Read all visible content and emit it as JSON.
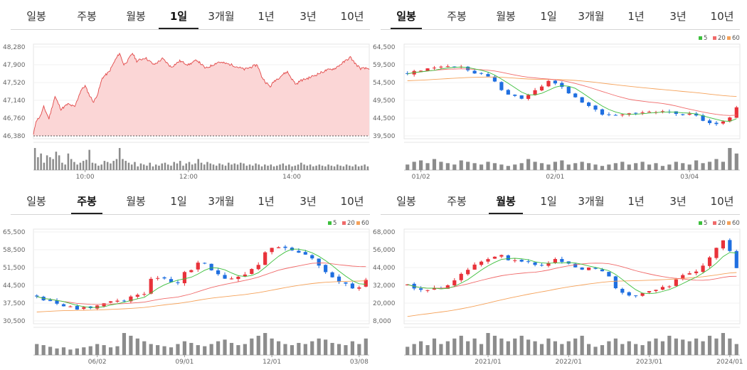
{
  "tab_labels": [
    "일봉",
    "주봉",
    "월봉",
    "1일",
    "3개월",
    "1년",
    "3년",
    "10년"
  ],
  "legend_labels": [
    "5",
    "20",
    "60"
  ],
  "colors": {
    "up": "#e8323a",
    "down": "#1f6fe0",
    "ma5": "#3cbf3c",
    "ma20": "#f06a6a",
    "ma60": "#f5a25a",
    "area_fill": "#fbd6d6",
    "area_line": "#e24848",
    "volume": "#8c8c8c"
  },
  "chart_data": [
    {
      "id": "intraday",
      "type": "area",
      "active_tab": 3,
      "title": "",
      "xlabel": "",
      "ylabel": "",
      "y_ticks": [
        "48,280",
        "47,900",
        "47,520",
        "47,140",
        "46,760",
        "46,380"
      ],
      "ylim": [
        46380,
        48280
      ],
      "x_ticks": [
        "10:00",
        "12:00",
        "14:00"
      ],
      "x_range": [
        0,
        390
      ],
      "x_tick_positions": [
        60,
        180,
        300
      ],
      "anchors": [
        [
          0,
          46400
        ],
        [
          3,
          46700
        ],
        [
          8,
          46800
        ],
        [
          12,
          47000
        ],
        [
          18,
          46750
        ],
        [
          25,
          47220
        ],
        [
          32,
          46950
        ],
        [
          40,
          47060
        ],
        [
          48,
          47000
        ],
        [
          55,
          47350
        ],
        [
          60,
          47450
        ],
        [
          65,
          47250
        ],
        [
          70,
          47100
        ],
        [
          75,
          47300
        ],
        [
          80,
          47620
        ],
        [
          88,
          47750
        ],
        [
          95,
          48000
        ],
        [
          100,
          48150
        ],
        [
          105,
          47900
        ],
        [
          110,
          48000
        ],
        [
          115,
          48150
        ],
        [
          120,
          47980
        ],
        [
          130,
          48050
        ],
        [
          140,
          47900
        ],
        [
          150,
          48030
        ],
        [
          160,
          47850
        ],
        [
          170,
          47980
        ],
        [
          180,
          47900
        ],
        [
          190,
          48000
        ],
        [
          200,
          47820
        ],
        [
          215,
          47960
        ],
        [
          230,
          47900
        ],
        [
          245,
          47800
        ],
        [
          260,
          47900
        ],
        [
          265,
          47650
        ],
        [
          270,
          47520
        ],
        [
          275,
          47430
        ],
        [
          280,
          47560
        ],
        [
          285,
          47620
        ],
        [
          290,
          47700
        ],
        [
          295,
          47750
        ],
        [
          300,
          47600
        ],
        [
          305,
          47480
        ],
        [
          310,
          47560
        ],
        [
          320,
          47620
        ],
        [
          330,
          47700
        ],
        [
          340,
          47780
        ],
        [
          350,
          47820
        ],
        [
          360,
          47950
        ],
        [
          368,
          48060
        ],
        [
          375,
          47900
        ],
        [
          380,
          47820
        ],
        [
          390,
          47820
        ]
      ],
      "noise": 25,
      "seed": 11,
      "volume": [
        60,
        35,
        45,
        20,
        40,
        35,
        30,
        50,
        40,
        20,
        15,
        45,
        30,
        22,
        15,
        20,
        25,
        28,
        55,
        20,
        18,
        12,
        15,
        25,
        22,
        18,
        25,
        30,
        60,
        30,
        25,
        20,
        15,
        22,
        10,
        18,
        15,
        12,
        20,
        10,
        15,
        12,
        18,
        20,
        15,
        12,
        22,
        18,
        25,
        12,
        18,
        22,
        15,
        18,
        30,
        20,
        15,
        22,
        18,
        15,
        12,
        18,
        15,
        12,
        20,
        15,
        18,
        15,
        20,
        18,
        12,
        15,
        12,
        18,
        15,
        10,
        15,
        12,
        15,
        10,
        12,
        15,
        18,
        12,
        15,
        10,
        12,
        15,
        20,
        15,
        12,
        15,
        10,
        12,
        15,
        12,
        10,
        15,
        12,
        10,
        15,
        12,
        10,
        15,
        12,
        10,
        15,
        10,
        12,
        15,
        10
      ]
    },
    {
      "id": "daily",
      "type": "candlestick",
      "active_tab": 0,
      "title": "",
      "xlabel": "",
      "ylabel": "",
      "y_ticks": [
        "64,500",
        "59,500",
        "54,500",
        "49,500",
        "44,500",
        "39,500"
      ],
      "ylim": [
        39500,
        64500
      ],
      "x_ticks": [
        "01/02",
        "02/01",
        "03/04"
      ],
      "x_tick_idx": [
        2,
        22,
        42
      ],
      "n": 50,
      "seed": 5,
      "noise": 900,
      "ma60_start": 55000,
      "anchors": [
        [
          0,
          57000
        ],
        [
          3,
          58200
        ],
        [
          6,
          59500
        ],
        [
          9,
          58000
        ],
        [
          12,
          56200
        ],
        [
          15,
          51000
        ],
        [
          17,
          50000
        ],
        [
          19,
          52500
        ],
        [
          21,
          54800
        ],
        [
          23,
          53000
        ],
        [
          25,
          50000
        ],
        [
          27,
          47500
        ],
        [
          29,
          45800
        ],
        [
          31,
          45000
        ],
        [
          33,
          45600
        ],
        [
          35,
          45800
        ],
        [
          37,
          46000
        ],
        [
          39,
          46300
        ],
        [
          41,
          45700
        ],
        [
          43,
          45200
        ],
        [
          44,
          44000
        ],
        [
          45,
          43200
        ],
        [
          46,
          43000
        ],
        [
          47,
          43600
        ],
        [
          48,
          44600
        ],
        [
          49,
          47200
        ]
      ],
      "volume": [
        20,
        30,
        35,
        25,
        40,
        30,
        25,
        20,
        35,
        30,
        25,
        20,
        30,
        25,
        20,
        15,
        20,
        25,
        40,
        30,
        25,
        20,
        30,
        35,
        20,
        25,
        30,
        25,
        20,
        15,
        20,
        25,
        30,
        20,
        25,
        30,
        20,
        25,
        15,
        20,
        30,
        25,
        20,
        35,
        25,
        30,
        40,
        30,
        80,
        60
      ]
    },
    {
      "id": "weekly",
      "type": "candlestick",
      "active_tab": 1,
      "title": "",
      "xlabel": "",
      "ylabel": "",
      "y_ticks": [
        "65,500",
        "58,500",
        "51,500",
        "44,500",
        "37,500",
        "30,500"
      ],
      "ylim": [
        30500,
        65500
      ],
      "x_ticks": [
        "06/02",
        "09/01",
        "12/01",
        "03/08"
      ],
      "x_tick_idx": [
        9,
        22,
        35,
        48
      ],
      "n": 50,
      "seed": 9,
      "noise": 1500,
      "ma60_start": 34000,
      "anchors": [
        [
          0,
          40000
        ],
        [
          3,
          37000
        ],
        [
          6,
          35500
        ],
        [
          8,
          36000
        ],
        [
          10,
          37500
        ],
        [
          12,
          38000
        ],
        [
          14,
          39500
        ],
        [
          16,
          41000
        ],
        [
          17,
          46500
        ],
        [
          19,
          47000
        ],
        [
          21,
          45500
        ],
        [
          22,
          49000
        ],
        [
          24,
          53000
        ],
        [
          25,
          52500
        ],
        [
          27,
          49000
        ],
        [
          29,
          46500
        ],
        [
          31,
          48500
        ],
        [
          33,
          53000
        ],
        [
          34,
          58000
        ],
        [
          36,
          60000
        ],
        [
          37,
          58500
        ],
        [
          39,
          58000
        ],
        [
          41,
          55000
        ],
        [
          43,
          50000
        ],
        [
          45,
          46000
        ],
        [
          47,
          44000
        ],
        [
          48,
          43500
        ],
        [
          49,
          46000
        ]
      ],
      "volume": [
        20,
        18,
        15,
        12,
        14,
        10,
        12,
        14,
        16,
        20,
        18,
        14,
        16,
        40,
        35,
        30,
        25,
        20,
        18,
        16,
        14,
        20,
        25,
        22,
        18,
        16,
        20,
        25,
        28,
        22,
        18,
        20,
        30,
        35,
        40,
        30,
        25,
        20,
        18,
        22,
        20,
        25,
        30,
        28,
        22,
        20,
        18,
        25,
        20,
        30
      ]
    },
    {
      "id": "monthly",
      "type": "candlestick",
      "active_tab": 2,
      "title": "",
      "xlabel": "",
      "ylabel": "",
      "y_ticks": [
        "68,000",
        "56,000",
        "44,000",
        "32,000",
        "20,000",
        "8,000"
      ],
      "ylim": [
        8000,
        68000
      ],
      "x_ticks": [
        "2021/01",
        "2022/01",
        "2023/01",
        "2024/01"
      ],
      "x_tick_idx": [
        12,
        24,
        36,
        48
      ],
      "n": 50,
      "seed": 3,
      "noise": 2200,
      "ma60_start": 11000,
      "anchors": [
        [
          0,
          33000
        ],
        [
          2,
          28000
        ],
        [
          4,
          30000
        ],
        [
          6,
          31000
        ],
        [
          8,
          40000
        ],
        [
          10,
          45000
        ],
        [
          12,
          50000
        ],
        [
          14,
          52000
        ],
        [
          16,
          48000
        ],
        [
          18,
          47000
        ],
        [
          20,
          46000
        ],
        [
          22,
          49000
        ],
        [
          24,
          46000
        ],
        [
          26,
          43000
        ],
        [
          28,
          44000
        ],
        [
          30,
          38000
        ],
        [
          31,
          30000
        ],
        [
          33,
          25000
        ],
        [
          35,
          27000
        ],
        [
          37,
          30000
        ],
        [
          39,
          32000
        ],
        [
          41,
          38000
        ],
        [
          43,
          42000
        ],
        [
          45,
          50000
        ],
        [
          46,
          58000
        ],
        [
          47,
          62000
        ],
        [
          48,
          55000
        ],
        [
          49,
          44000
        ]
      ],
      "volume": [
        15,
        20,
        25,
        18,
        30,
        20,
        25,
        30,
        35,
        25,
        30,
        20,
        40,
        35,
        30,
        25,
        30,
        35,
        28,
        25,
        20,
        30,
        25,
        20,
        25,
        30,
        35,
        20,
        15,
        18,
        25,
        30,
        20,
        25,
        20,
        18,
        25,
        30,
        25,
        35,
        30,
        28,
        25,
        30,
        25,
        35,
        30,
        40,
        30,
        20
      ]
    }
  ]
}
